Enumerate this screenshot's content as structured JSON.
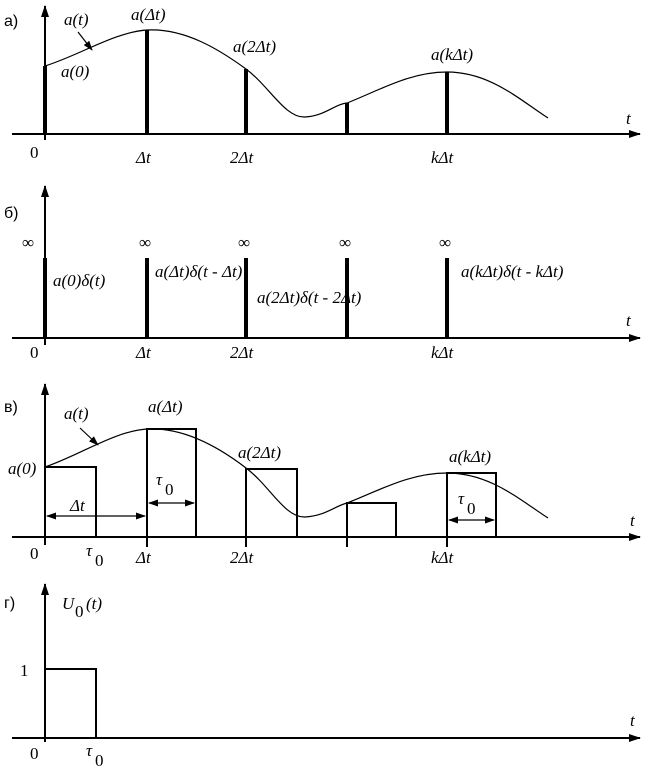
{
  "panels": {
    "a": {
      "letter": "а)",
      "t_axis": "t",
      "ticks": [
        "0",
        "Δt",
        "2Δt",
        "kΔt"
      ],
      "curve_label": "a(t)",
      "sample_labels": [
        "a(0)",
        "a(Δt)",
        "a(2Δt)",
        "a(kΔt)"
      ]
    },
    "b": {
      "letter": "б)",
      "t_axis": "t",
      "ticks": [
        "0",
        "Δt",
        "2Δt",
        "kΔt"
      ],
      "infinity": "∞",
      "delta_labels": [
        "a(0)δ(t)",
        "a(Δt)δ(t - Δt)",
        "a(2Δt)δ(t - 2Δt)",
        "a(kΔt)δ(t - kΔt)"
      ]
    },
    "c": {
      "letter": "в)",
      "t_axis": "t",
      "ticks": [
        "0",
        "τ",
        "0",
        "Δt",
        "2Δt",
        "kΔt"
      ],
      "curve_label": "a(t)",
      "sample_labels": [
        "a(0)",
        "a(Δt)",
        "a(2Δt)",
        "a(kΔt)"
      ],
      "interval_label": "Δt",
      "pulse_width": "τ",
      "pulse_width_sub": "0"
    },
    "d": {
      "letter": "г)",
      "t_axis": "t",
      "func_name": "U",
      "func_sub": "0",
      "func_arg": "(t)",
      "level": "1",
      "origin": "0",
      "width": "τ",
      "width_sub": "0"
    }
  }
}
